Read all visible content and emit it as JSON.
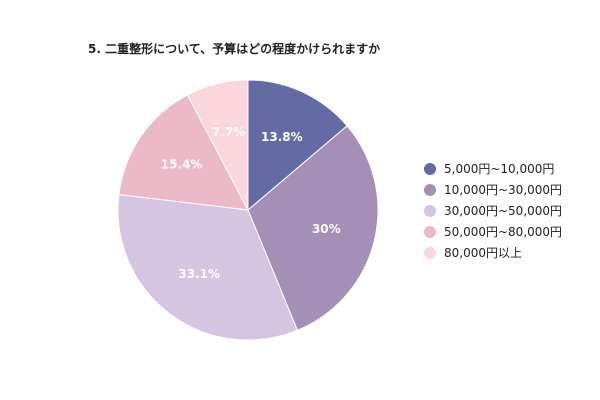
{
  "chart_data": {
    "type": "pie",
    "title": "5. 二重整形について、予算はどの程度かけられますか",
    "legend_position": "right",
    "categories": [
      "5,000円~10,000円",
      "10,000円~30,000円",
      "30,000円~50,000円",
      "50,000円~80,000円",
      "80,000円以上"
    ],
    "values": [
      13.8,
      30,
      33.1,
      15.4,
      7.7
    ],
    "value_labels": [
      "13.8%",
      "30%",
      "33.1%",
      "15.4%",
      "7.7%"
    ],
    "colors": [
      "#646aa3",
      "#a490b6",
      "#d5c5e0",
      "#ecb9c9",
      "#fbd6dc"
    ]
  }
}
